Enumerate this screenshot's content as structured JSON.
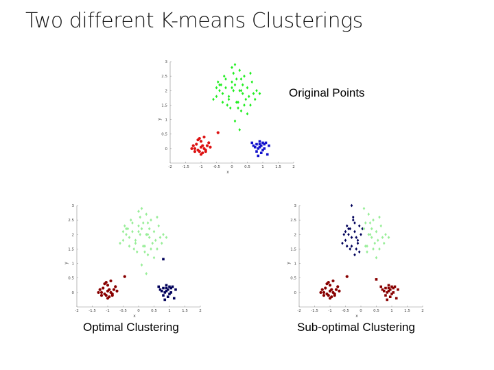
{
  "title": "Two different K-means Clusterings",
  "colors": {
    "bright_green": "#22ee22",
    "bright_red": "#dd1111",
    "bright_blue": "#1111cc",
    "light_green": "#99ee99",
    "dark_red": "#880000",
    "dark_navy": "#00005a"
  },
  "chart_data": [
    {
      "type": "scatter",
      "caption": "Original Points",
      "xlabel": "x",
      "ylabel": "y",
      "xlim": [
        -2,
        2
      ],
      "ylim": [
        -0.5,
        3
      ],
      "xticks": [
        "-2",
        "-1.5",
        "-1",
        "-0.5",
        "0",
        "0.5",
        "1",
        "1.5",
        "2"
      ],
      "yticks": [
        "0",
        "0.5",
        "1",
        "1.5",
        "2",
        "2.5",
        "3"
      ],
      "series": [
        {
          "color": "#22ee22",
          "marker": "diamond",
          "x": [
            -0.4,
            -0.2,
            0.1,
            0.25,
            -0.5,
            -0.3,
            0.0,
            0.3,
            0.5,
            -0.1,
            0.15,
            -0.45,
            -0.25,
            0.05,
            0.35,
            0.55,
            0.7,
            -0.6,
            -0.15,
            0.2,
            0.4,
            -0.35,
            0.0,
            0.25,
            0.6,
            -0.05,
            0.45,
            -0.5,
            0.1,
            0.3,
            0.8,
            -0.2,
            0.6,
            0.05,
            0.35,
            -0.4,
            0.15,
            0.75,
            -0.3,
            0.5,
            0.0,
            0.2,
            0.9,
            0.65,
            0.3,
            -0.1,
            0.4,
            0.1,
            0.25
          ],
          "y": [
            2.0,
            2.1,
            2.2,
            2.0,
            1.8,
            1.9,
            2.3,
            2.4,
            2.1,
            1.7,
            1.6,
            2.3,
            2.5,
            2.6,
            2.2,
            1.8,
            1.9,
            1.7,
            1.5,
            1.6,
            1.5,
            2.2,
            2.1,
            2.7,
            2.6,
            1.4,
            1.7,
            2.1,
            2.9,
            1.3,
            2.0,
            2.4,
            1.5,
            2.0,
            1.9,
            2.2,
            2.4,
            1.7,
            1.6,
            1.2,
            2.8,
            1.4,
            1.9,
            2.3,
            2.0,
            1.8,
            2.5,
            0.95,
            0.65
          ]
        },
        {
          "color": "#dd1111",
          "marker": "circle",
          "x": [
            -1.2,
            -1.1,
            -1.0,
            -0.95,
            -1.05,
            -0.9,
            -1.15,
            -0.85,
            -1.0,
            -0.8,
            -1.1,
            -1.25,
            -0.95,
            -1.05,
            -0.7,
            -0.75,
            -1.3,
            -0.9,
            -0.45,
            -1.0,
            -1.2,
            -0.85
          ],
          "y": [
            0.0,
            -0.05,
            0.05,
            0.1,
            -0.1,
            0.0,
            0.15,
            -0.05,
            0.25,
            0.1,
            0.3,
            0.1,
            -0.15,
            0.35,
            0.05,
            0.2,
            0.0,
            0.4,
            0.55,
            -0.2,
            -0.1,
            -0.1
          ]
        },
        {
          "color": "#1111cc",
          "marker": "square",
          "x": [
            0.7,
            0.8,
            0.9,
            1.0,
            0.85,
            0.95,
            1.05,
            0.75,
            1.1,
            0.9,
            1.0,
            0.8,
            0.95,
            1.2,
            0.65,
            0.9,
            1.05,
            0.85,
            1.15
          ],
          "y": [
            0.1,
            0.15,
            0.05,
            0.2,
            0.0,
            0.1,
            0.15,
            0.05,
            0.2,
            0.25,
            -0.05,
            -0.1,
            -0.15,
            0.1,
            0.2,
            0.15,
            0.0,
            -0.25,
            -0.2
          ]
        }
      ]
    },
    {
      "type": "scatter",
      "caption": "Optimal Clustering",
      "xlabel": "x",
      "ylabel": "y",
      "xlim": [
        -2,
        2
      ],
      "ylim": [
        -0.5,
        3
      ],
      "xticks": [
        "-2",
        "-1.5",
        "-1",
        "-0.5",
        "0",
        "0.5",
        "1",
        "1.5",
        "2"
      ],
      "yticks": [
        "0",
        "0.5",
        "1",
        "1.5",
        "2",
        "2.5",
        "3"
      ],
      "series": [
        {
          "color": "#99ee99",
          "marker": "diamond",
          "x": [
            -0.4,
            -0.2,
            0.1,
            0.25,
            -0.5,
            -0.3,
            0.0,
            0.3,
            0.5,
            -0.1,
            0.15,
            -0.45,
            -0.25,
            0.05,
            0.35,
            0.55,
            0.7,
            -0.6,
            -0.15,
            0.2,
            0.4,
            -0.35,
            0.0,
            0.25,
            0.6,
            -0.05,
            0.45,
            -0.5,
            0.1,
            0.3,
            0.8,
            -0.2,
            0.6,
            0.05,
            0.35,
            -0.4,
            0.15,
            0.75,
            -0.3,
            0.5,
            0.0,
            0.2,
            0.9,
            0.65,
            0.3,
            -0.1,
            0.4,
            0.1,
            0.25
          ],
          "y": [
            2.0,
            2.1,
            2.2,
            2.0,
            1.8,
            1.9,
            2.3,
            2.4,
            2.1,
            1.7,
            1.6,
            2.3,
            2.5,
            2.6,
            2.2,
            1.8,
            1.9,
            1.7,
            1.5,
            1.6,
            1.5,
            2.2,
            2.1,
            2.7,
            2.6,
            1.4,
            1.7,
            2.1,
            2.9,
            1.3,
            2.0,
            2.4,
            1.5,
            2.0,
            1.9,
            2.2,
            2.4,
            1.7,
            1.6,
            1.2,
            2.8,
            1.4,
            1.9,
            2.3,
            2.0,
            1.8,
            2.5,
            0.95,
            0.65
          ]
        },
        {
          "color": "#880000",
          "marker": "circle",
          "x": [
            -1.2,
            -1.1,
            -1.0,
            -0.95,
            -1.05,
            -0.9,
            -1.15,
            -0.85,
            -1.0,
            -0.8,
            -1.1,
            -1.25,
            -0.95,
            -1.05,
            -0.7,
            -0.75,
            -1.3,
            -0.9,
            -0.45,
            -1.0,
            -1.2,
            -0.85
          ],
          "y": [
            0.0,
            -0.05,
            0.05,
            0.1,
            -0.1,
            0.0,
            0.15,
            -0.05,
            0.25,
            0.1,
            0.3,
            0.1,
            -0.15,
            0.35,
            0.05,
            0.2,
            0.0,
            0.4,
            0.55,
            -0.2,
            -0.1,
            -0.1
          ]
        },
        {
          "color": "#00005a",
          "marker": "square",
          "x": [
            0.7,
            0.8,
            0.9,
            1.0,
            0.85,
            0.95,
            1.05,
            0.75,
            1.1,
            0.9,
            1.0,
            0.8,
            0.95,
            1.2,
            0.65,
            0.9,
            1.05,
            0.85,
            1.15,
            0.8
          ],
          "y": [
            0.1,
            0.15,
            0.05,
            0.2,
            0.0,
            0.1,
            0.15,
            0.05,
            0.2,
            0.25,
            -0.05,
            -0.1,
            -0.15,
            0.1,
            0.2,
            0.15,
            0.0,
            -0.25,
            -0.2,
            1.15
          ]
        }
      ]
    },
    {
      "type": "scatter",
      "caption": "Sub-optimal Clustering",
      "xlabel": "x",
      "ylabel": "y",
      "xlim": [
        -2,
        2
      ],
      "ylim": [
        -0.5,
        3
      ],
      "xticks": [
        "-2",
        "-1.5",
        "-1",
        "-0.5",
        "0",
        "0.5",
        "1",
        "1.5",
        "2"
      ],
      "yticks": [
        "0",
        "0.5",
        "1",
        "1.5",
        "2",
        "2.5",
        "3"
      ],
      "series": [
        {
          "color": "#00005a",
          "marker": "diamond",
          "x": [
            -0.4,
            -0.2,
            -0.5,
            -0.3,
            -0.1,
            -0.45,
            -0.25,
            -0.6,
            -0.15,
            -0.35,
            -0.05,
            -0.5,
            -0.2,
            -0.4,
            -0.3,
            -0.1,
            0.0,
            -0.25,
            -0.35,
            -0.15,
            -0.45,
            -0.05,
            -0.3,
            -0.2,
            -0.55,
            0.05
          ],
          "y": [
            2.0,
            2.1,
            1.8,
            1.9,
            1.7,
            2.3,
            2.5,
            1.7,
            1.5,
            2.2,
            1.4,
            2.1,
            2.4,
            2.2,
            1.6,
            1.8,
            2.0,
            2.6,
            1.5,
            1.9,
            1.6,
            2.3,
            3.0,
            1.3,
            2.0,
            2.2
          ]
        },
        {
          "color": "#99ee99",
          "marker": "diamond",
          "x": [
            0.1,
            0.25,
            0.3,
            0.5,
            0.15,
            0.35,
            0.55,
            0.7,
            0.2,
            0.4,
            0.25,
            0.6,
            0.45,
            0.1,
            0.8,
            0.6,
            0.35,
            0.15,
            0.75,
            0.5,
            0.2,
            0.9,
            0.65,
            0.3,
            0.4
          ],
          "y": [
            2.2,
            2.0,
            2.4,
            2.1,
            1.6,
            2.2,
            1.8,
            1.9,
            1.6,
            1.5,
            2.7,
            2.6,
            1.7,
            2.9,
            2.0,
            1.5,
            1.9,
            2.4,
            1.7,
            1.2,
            1.4,
            1.9,
            2.3,
            2.0,
            2.5
          ]
        },
        {
          "color": "#880000",
          "marker": "circle",
          "x": [
            -1.2,
            -1.1,
            -1.0,
            -0.95,
            -1.05,
            -0.9,
            -1.15,
            -0.85,
            -1.0,
            -0.8,
            -1.1,
            -1.25,
            -0.95,
            -1.05,
            -0.7,
            -0.75,
            -1.3,
            -0.9,
            -0.45,
            -1.0,
            -1.2,
            -0.85
          ],
          "y": [
            0.0,
            -0.05,
            0.05,
            0.1,
            -0.1,
            0.0,
            0.15,
            -0.05,
            0.25,
            0.1,
            0.3,
            0.1,
            -0.15,
            0.35,
            0.05,
            0.2,
            0.0,
            0.4,
            0.55,
            -0.2,
            -0.1,
            -0.1
          ]
        },
        {
          "color": "#880000",
          "marker": "square",
          "x": [
            0.7,
            0.8,
            0.9,
            1.0,
            0.85,
            0.95,
            1.05,
            0.75,
            1.1,
            0.9,
            1.0,
            0.8,
            0.95,
            1.2,
            0.65,
            0.9,
            1.05,
            0.85,
            1.15,
            0.5
          ],
          "y": [
            0.1,
            0.15,
            0.05,
            0.2,
            0.0,
            0.1,
            0.15,
            0.05,
            0.2,
            0.25,
            -0.05,
            -0.1,
            -0.15,
            0.1,
            0.2,
            0.15,
            0.0,
            -0.25,
            -0.2,
            0.45
          ]
        }
      ]
    }
  ]
}
